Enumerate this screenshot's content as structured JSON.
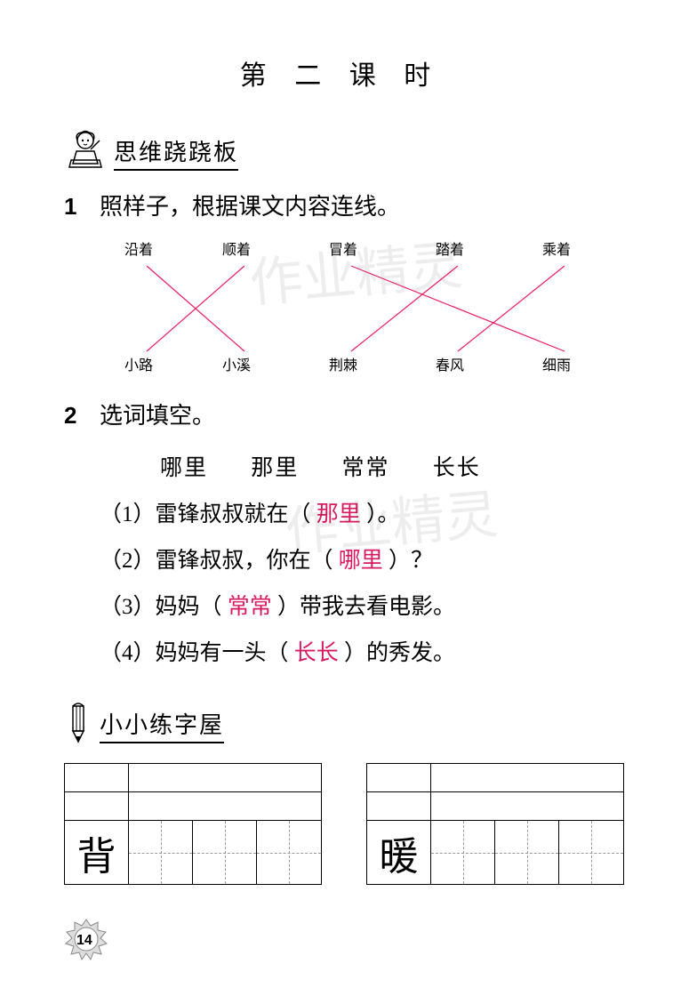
{
  "title": "第 二 课 时",
  "sections": {
    "s1": {
      "title": "思维跷跷板"
    },
    "s2": {
      "title": "小小练字屋"
    }
  },
  "q1": {
    "num": "1",
    "stem": "照样子，根据课文内容连线。",
    "top": [
      "沿着",
      "顺着",
      "冒着",
      "踏着",
      "乘着"
    ],
    "bot": [
      "小路",
      "小溪",
      "荆棘",
      "春风",
      "细雨"
    ],
    "top_x": [
      30,
      140,
      260,
      380,
      500
    ],
    "bot_x": [
      30,
      140,
      260,
      380,
      500
    ],
    "lines": [
      {
        "from": 0,
        "to": 1
      },
      {
        "from": 1,
        "to": 0
      },
      {
        "from": 2,
        "to": 4
      },
      {
        "from": 3,
        "to": 2
      },
      {
        "from": 4,
        "to": 3
      }
    ],
    "line_color": "#e91e63"
  },
  "q2": {
    "num": "2",
    "stem": "选词填空。",
    "options": [
      "哪里",
      "那里",
      "常常",
      "长长"
    ],
    "items": [
      {
        "idx": "（1）",
        "pre": "雷锋叔叔就在（",
        "ans": "那里",
        "post": "）。"
      },
      {
        "idx": "（2）",
        "pre": "雷锋叔叔，你在（",
        "ans": "哪里",
        "post": "）？"
      },
      {
        "idx": "（3）",
        "pre": "妈妈（",
        "ans": "常常",
        "post": "）带我去看电影。"
      },
      {
        "idx": "（4）",
        "pre": "妈妈有一头（",
        "ans": "长长",
        "post": "）的秀发。"
      }
    ]
  },
  "practice": {
    "chars": [
      "背",
      "暖"
    ]
  },
  "page_num": "14",
  "watermark": "作业精灵",
  "colors": {
    "answer": "#d81b60",
    "text": "#000000",
    "bg": "#ffffff"
  }
}
